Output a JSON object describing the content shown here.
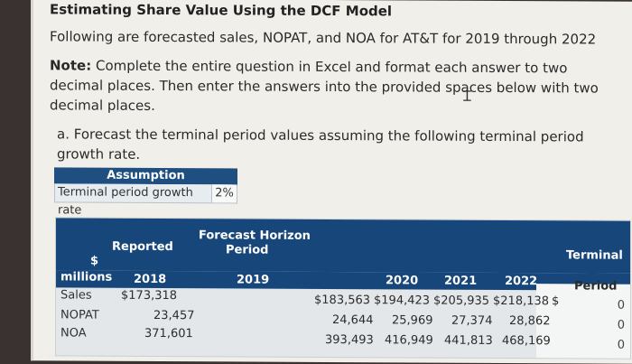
{
  "title": "Estimating Share Value Using the DCF Model",
  "intro": "Following are forecasted sales, NOPAT, and NOA for AT&T for 2019 through 2022",
  "note": {
    "label": "Note:",
    "text": " Complete the entire question in Excel and format each answer to two decimal places. Then enter the answers into the provided spaces below with two decimal places."
  },
  "question_a": "a. Forecast the terminal period values assuming the following terminal period growth rate.",
  "assumption": {
    "header": "Assumption",
    "label": "Terminal period growth rate",
    "value": "2%"
  },
  "table": {
    "reported_header": "Reported",
    "forecast_header_line1": "Forecast Horizon",
    "forecast_header_line2": "Period",
    "terminal_header": "Terminal",
    "dollar_label": "$",
    "millions_label": "millions",
    "years": [
      "2018",
      "2019",
      "2020",
      "2021",
      "2022"
    ],
    "period_label": "Period",
    "rows": [
      {
        "label": "Sales",
        "reported": "$173,318",
        "forecast": [
          "$183,563",
          "$194,423",
          "$205,935",
          "$218,138"
        ],
        "prefix": "$",
        "terminal": "0"
      },
      {
        "label": "NOPAT",
        "reported": "23,457",
        "forecast": [
          "24,644",
          "25,969",
          "27,374",
          "28,862"
        ],
        "prefix": "",
        "terminal": "0"
      },
      {
        "label": "NOA",
        "reported": "371,601",
        "forecast": [
          "393,493",
          "416,949",
          "441,813",
          "468,169"
        ],
        "prefix": "",
        "terminal": "0"
      }
    ]
  },
  "colors": {
    "header_blue": "#17477a",
    "assumption_blue": "#1e4f80"
  },
  "icons": {
    "cursor": "text-cursor-icon"
  }
}
